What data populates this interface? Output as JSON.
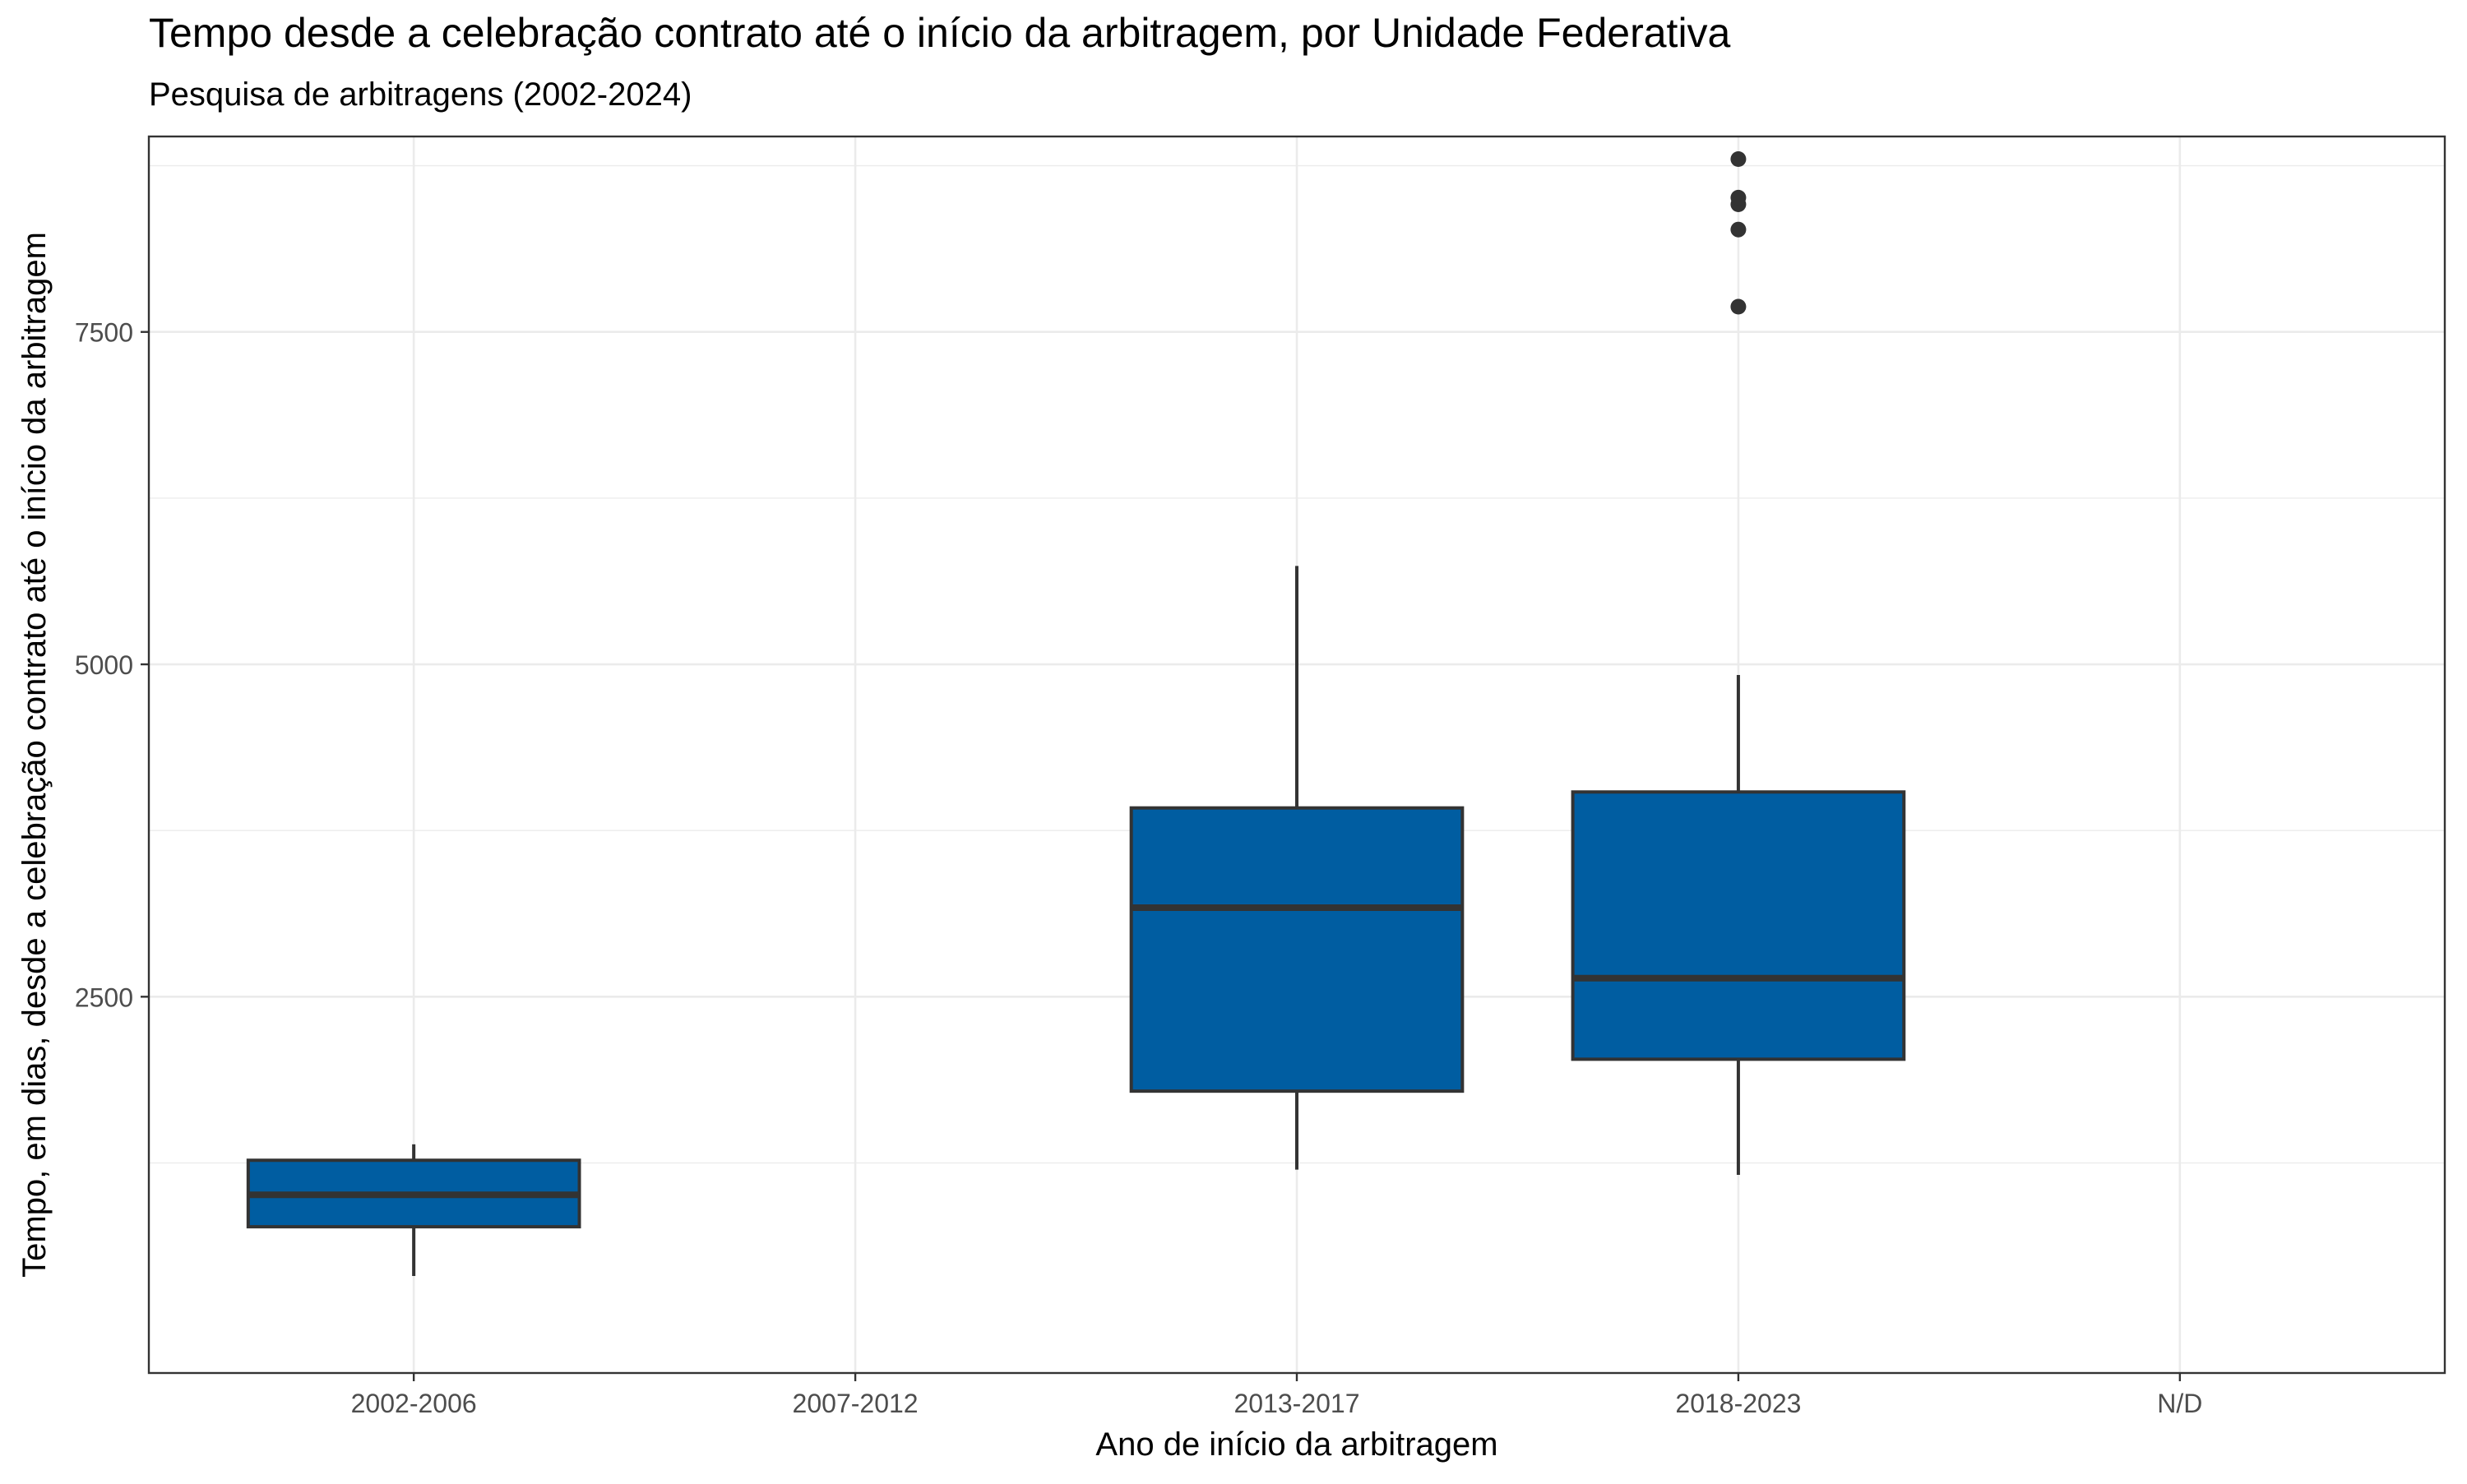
{
  "chart_data": {
    "type": "boxplot",
    "title": "Tempo desde a celebração contrato até o início da arbitragem, por Unidade Federativa",
    "subtitle": "Pesquisa de arbitragens (2002-2024)",
    "xlabel": "Ano de início da arbitragem",
    "ylabel": "Tempo, em dias, desde a celebração contrato até o início da arbitragem",
    "categories": [
      "2002-2006",
      "2007-2012",
      "2013-2017",
      "2018-2023",
      "N/D"
    ],
    "y_ticks": [
      2500,
      5000,
      7500
    ],
    "y_tick_labels": [
      "2500",
      "5000",
      "7500"
    ],
    "ylim": [
      -330,
      8970
    ],
    "grid": true,
    "fill_color": "#005da1",
    "outline_color": "#333333",
    "boxes": [
      {
        "category": "2002-2006",
        "min": 400,
        "q1": 770,
        "median": 1010,
        "q3": 1270,
        "max": 1390,
        "outliers": []
      },
      {
        "category": "2013-2017",
        "min": 1200,
        "q1": 1790,
        "median": 3170,
        "q3": 3920,
        "max": 5740,
        "outliers": []
      },
      {
        "category": "2018-2023",
        "min": 1160,
        "q1": 2030,
        "median": 2640,
        "q3": 4040,
        "max": 4920,
        "outliers": [
          7690,
          8270,
          8460,
          8510,
          8800
        ]
      }
    ]
  }
}
